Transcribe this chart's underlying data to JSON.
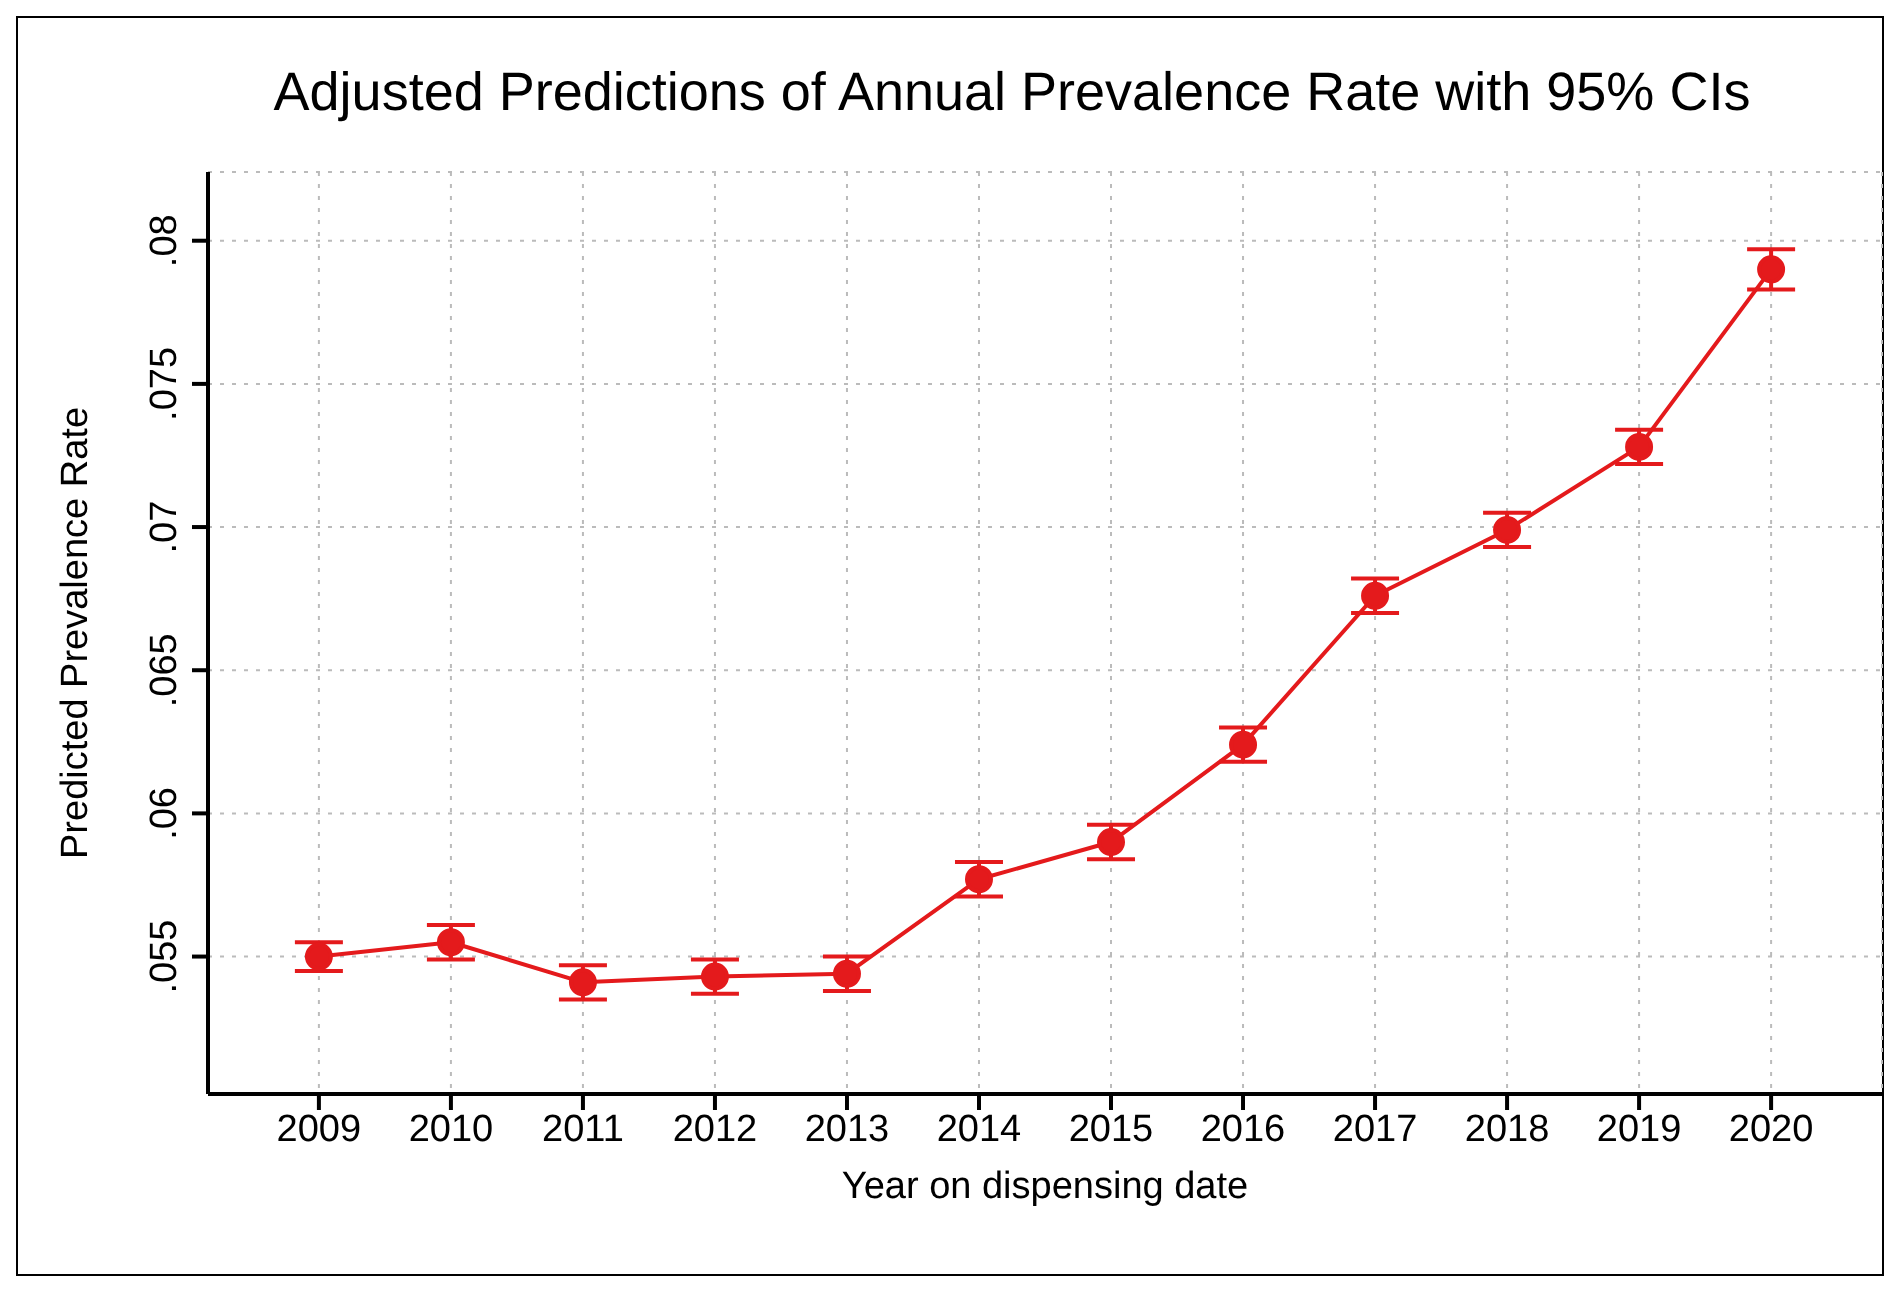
{
  "chart_data": {
    "type": "line",
    "title": "Adjusted Predictions of Annual Prevalence Rate with 95% CIs",
    "xlabel": "Year on dispensing date",
    "ylabel": "Predicted Prevalence Rate",
    "x": [
      2009,
      2010,
      2011,
      2012,
      2013,
      2014,
      2015,
      2016,
      2017,
      2018,
      2019,
      2020
    ],
    "series": [
      {
        "color": "#e41a1c",
        "values": [
          0.055,
          0.0555,
          0.0541,
          0.0543,
          0.0544,
          0.0577,
          0.059,
          0.0624,
          0.0676,
          0.0699,
          0.0728,
          0.079
        ],
        "errors": [
          0.0005,
          0.0006,
          0.0006,
          0.0006,
          0.0006,
          0.0006,
          0.0006,
          0.0006,
          0.0006,
          0.0006,
          0.0006,
          0.0007
        ]
      }
    ],
    "xlim": [
      2008.16,
      2020.84
    ],
    "xticks": [
      2009,
      2010,
      2011,
      2012,
      2013,
      2014,
      2015,
      2016,
      2017,
      2018,
      2019,
      2020
    ],
    "ylim": [
      0.0502,
      0.0824
    ],
    "yticks": [
      {
        "value": 0.055,
        "label": ".055"
      },
      {
        "value": 0.06,
        "label": ".06"
      },
      {
        "value": 0.065,
        "label": ".065"
      },
      {
        "value": 0.07,
        "label": ".07"
      },
      {
        "value": 0.075,
        "label": ".075"
      },
      {
        "value": 0.08,
        "label": ".08"
      }
    ],
    "grid": true,
    "marker": "circle",
    "line_style": "solid"
  }
}
